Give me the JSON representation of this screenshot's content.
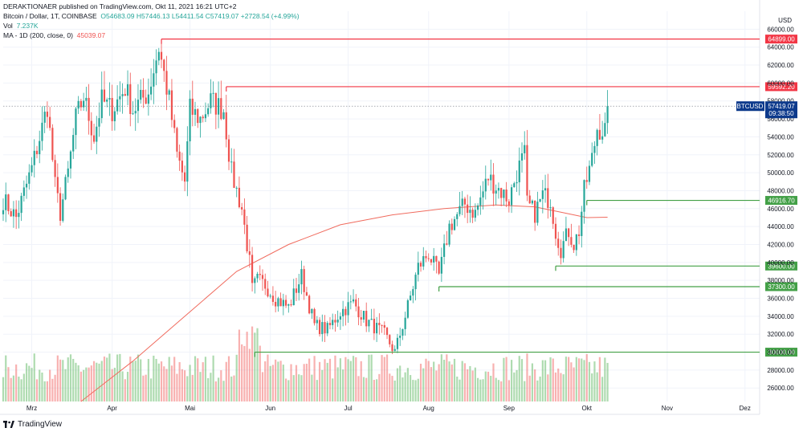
{
  "header": {
    "published": "DERAKTIONAER published on TradingView.com, Okt 11, 2021 16:21 UTC+2",
    "symbol": "Bitcoin / Dollar, 1T, COINBASE",
    "ohlc": {
      "open": "O54683.09",
      "high": "H57446.13",
      "low": "L54411.54",
      "close": "C57419.07",
      "change": "+2728.54 (+4.99%)"
    },
    "vol_label": "Vol",
    "vol_value": "7.237K",
    "ma_label": "MA - 1D (200, close, 0)",
    "ma_value": "45039.07"
  },
  "footer": {
    "brand": "TradingView"
  },
  "colors": {
    "up": "#26a69a",
    "up_candle": "#4caf50",
    "down": "#ef5350",
    "ma": "#f06b5e",
    "resistance": "#f23645",
    "support": "#43a047",
    "ticker_bg": "#0d3a8c",
    "grid": "#f0f3fa"
  },
  "chart_data": {
    "type": "candlestick",
    "title": "Bitcoin / Dollar, 1T, COINBASE",
    "xlabel": "",
    "ylabel": "",
    "y_unit_label": "USD",
    "ylim": [
      24500,
      68000
    ],
    "y_ticks": [
      "66000.00",
      "64000.00",
      "62000.00",
      "60000.00",
      "58000.00",
      "56000.00",
      "54000.00",
      "52000.00",
      "50000.00",
      "48000.00",
      "46000.00",
      "44000.00",
      "42000.00",
      "40000.00",
      "38000.00",
      "36000.00",
      "34000.00",
      "32000.00",
      "30000.00",
      "28000.00",
      "26000.00"
    ],
    "x_ticks": [
      "Mrz",
      "Apr",
      "Mai",
      "Jun",
      "Jul",
      "Aug",
      "Sep",
      "Okt",
      "Nov",
      "Dez"
    ],
    "x_tick_days": [
      11,
      42,
      72,
      103,
      133,
      164,
      195,
      225,
      256,
      286
    ],
    "last_day": 233,
    "key_points": [
      {
        "day": 0,
        "price": 47000
      },
      {
        "day": 5,
        "price": 45000
      },
      {
        "day": 11,
        "price": 50500
      },
      {
        "day": 15,
        "price": 55000
      },
      {
        "day": 17,
        "price": 57500
      },
      {
        "day": 20,
        "price": 48500
      },
      {
        "day": 22,
        "price": 45500
      },
      {
        "day": 25,
        "price": 50000
      },
      {
        "day": 28,
        "price": 56000
      },
      {
        "day": 31,
        "price": 58500
      },
      {
        "day": 35,
        "price": 54000
      },
      {
        "day": 38,
        "price": 58000
      },
      {
        "day": 42,
        "price": 57000
      },
      {
        "day": 47,
        "price": 59500
      },
      {
        "day": 50,
        "price": 57000
      },
      {
        "day": 56,
        "price": 59000
      },
      {
        "day": 60,
        "price": 64000
      },
      {
        "day": 64,
        "price": 58000
      },
      {
        "day": 67,
        "price": 52000
      },
      {
        "day": 70,
        "price": 49000
      },
      {
        "day": 72,
        "price": 57000
      },
      {
        "day": 76,
        "price": 56000
      },
      {
        "day": 80,
        "price": 58000
      },
      {
        "day": 85,
        "price": 57000
      },
      {
        "day": 88,
        "price": 50000
      },
      {
        "day": 92,
        "price": 46000
      },
      {
        "day": 95,
        "price": 40000
      },
      {
        "day": 96,
        "price": 37000
      },
      {
        "day": 98,
        "price": 38000
      },
      {
        "day": 101,
        "price": 37500
      },
      {
        "day": 105,
        "price": 36000
      },
      {
        "day": 110,
        "price": 35000
      },
      {
        "day": 115,
        "price": 38500
      },
      {
        "day": 120,
        "price": 33000
      },
      {
        "day": 125,
        "price": 32500
      },
      {
        "day": 130,
        "price": 34500
      },
      {
        "day": 135,
        "price": 35500
      },
      {
        "day": 140,
        "price": 33500
      },
      {
        "day": 147,
        "price": 32000
      },
      {
        "day": 151,
        "price": 30000
      },
      {
        "day": 155,
        "price": 34000
      },
      {
        "day": 160,
        "price": 39500
      },
      {
        "day": 164,
        "price": 41000
      },
      {
        "day": 168,
        "price": 38500
      },
      {
        "day": 172,
        "price": 44000
      },
      {
        "day": 178,
        "price": 46500
      },
      {
        "day": 182,
        "price": 45500
      },
      {
        "day": 187,
        "price": 49500
      },
      {
        "day": 190,
        "price": 48500
      },
      {
        "day": 195,
        "price": 47000
      },
      {
        "day": 198,
        "price": 50000
      },
      {
        "day": 201,
        "price": 52000
      },
      {
        "day": 202,
        "price": 46500
      },
      {
        "day": 205,
        "price": 45500
      },
      {
        "day": 208,
        "price": 47500
      },
      {
        "day": 211,
        "price": 47000
      },
      {
        "day": 213,
        "price": 43500
      },
      {
        "day": 215,
        "price": 41500
      },
      {
        "day": 218,
        "price": 43500
      },
      {
        "day": 220,
        "price": 42000
      },
      {
        "day": 222,
        "price": 43500
      },
      {
        "day": 224,
        "price": 48000
      },
      {
        "day": 227,
        "price": 51500
      },
      {
        "day": 229,
        "price": 55000
      },
      {
        "day": 232,
        "price": 54700
      },
      {
        "day": 233,
        "price": 57419
      }
    ],
    "ma_points": [
      {
        "day": 30,
        "price": 24500
      },
      {
        "day": 50,
        "price": 29000
      },
      {
        "day": 70,
        "price": 34000
      },
      {
        "day": 90,
        "price": 39000
      },
      {
        "day": 110,
        "price": 42000
      },
      {
        "day": 130,
        "price": 44200
      },
      {
        "day": 150,
        "price": 45300
      },
      {
        "day": 170,
        "price": 46000
      },
      {
        "day": 190,
        "price": 46400
      },
      {
        "day": 205,
        "price": 46200
      },
      {
        "day": 215,
        "price": 45600
      },
      {
        "day": 225,
        "price": 45000
      },
      {
        "day": 233,
        "price": 45039
      }
    ],
    "levels": [
      {
        "label": "64899.00",
        "price": 64899,
        "start_day": 61,
        "kind": "resistance"
      },
      {
        "label": "59592.20",
        "price": 59592,
        "start_day": 86,
        "kind": "resistance"
      },
      {
        "label": "46916.70",
        "price": 46917,
        "start_day": 225,
        "kind": "support"
      },
      {
        "label": "39600.00",
        "price": 39600,
        "start_day": 213,
        "kind": "support"
      },
      {
        "label": "37300.00",
        "price": 37300,
        "start_day": 168,
        "kind": "support"
      },
      {
        "label": "30000.00",
        "price": 30000,
        "start_day": 97,
        "kind": "support"
      }
    ],
    "last_price": {
      "ticker": "BTCUSD",
      "price_label": "57419.07",
      "countdown": "09:38:50",
      "price": 57419
    },
    "volume_ylim": [
      0,
      12000
    ]
  }
}
